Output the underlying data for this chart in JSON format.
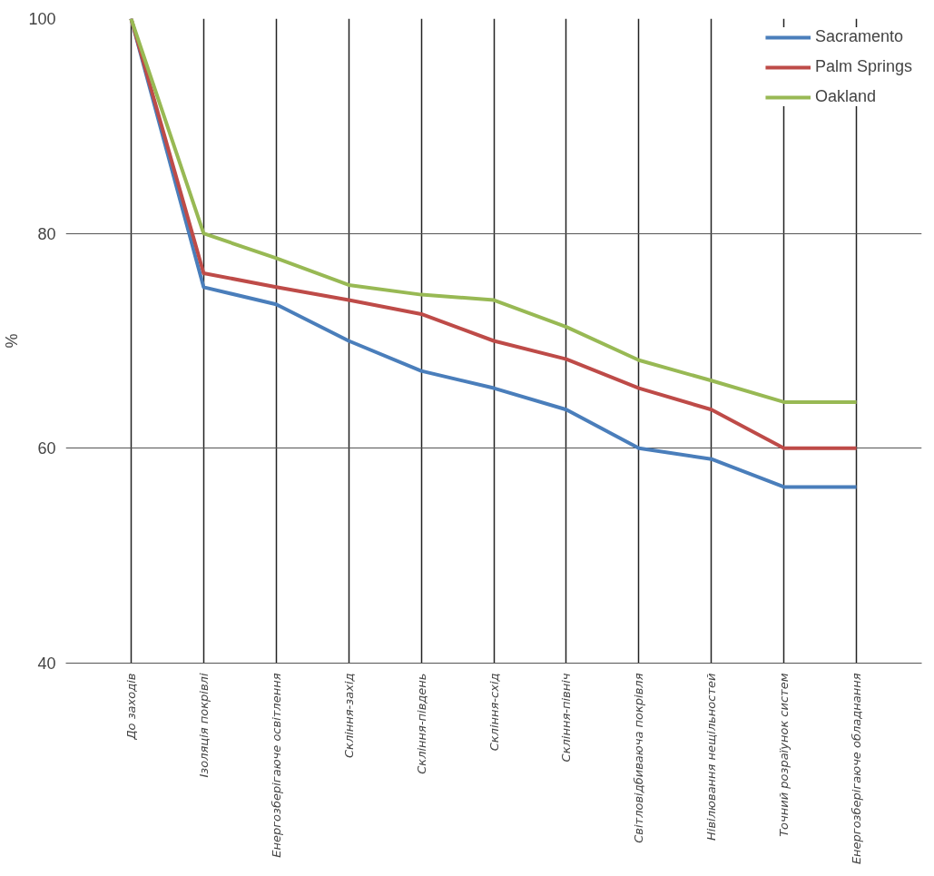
{
  "chart_data": {
    "type": "line",
    "ylabel": "%",
    "categories": [
      "До заходів",
      "Ізоляція покрівлі",
      "Енергозберігаюче освітлення",
      "Скління-захід",
      "Скління-південь",
      "Скління-схід",
      "Скління-північ",
      "Світловідбиваюча покрівля",
      "Нівілювання нещільностей",
      "Точний розраїунок систем",
      "Енергозберігаюче обладнання"
    ],
    "series": [
      {
        "name": "Sacramento",
        "color": "#4a7ebb",
        "values": [
          100,
          75,
          73.4,
          70,
          67.2,
          65.6,
          63.6,
          60,
          59,
          56.4,
          56.4
        ]
      },
      {
        "name": "Palm Springs",
        "color": "#be4b48",
        "values": [
          100,
          76.3,
          75,
          73.8,
          72.5,
          70,
          68.3,
          65.6,
          63.6,
          60,
          60
        ]
      },
      {
        "name": "Oakland",
        "color": "#98b954",
        "values": [
          100,
          80,
          77.7,
          75.2,
          74.3,
          73.8,
          71.3,
          68.2,
          66.3,
          64.3,
          64.3
        ]
      }
    ],
    "ylim": [
      40,
      100
    ],
    "yticks": [
      40,
      60,
      80,
      100
    ],
    "grid": true,
    "legend": "top right",
    "marker": "none",
    "line_style": "solid"
  }
}
